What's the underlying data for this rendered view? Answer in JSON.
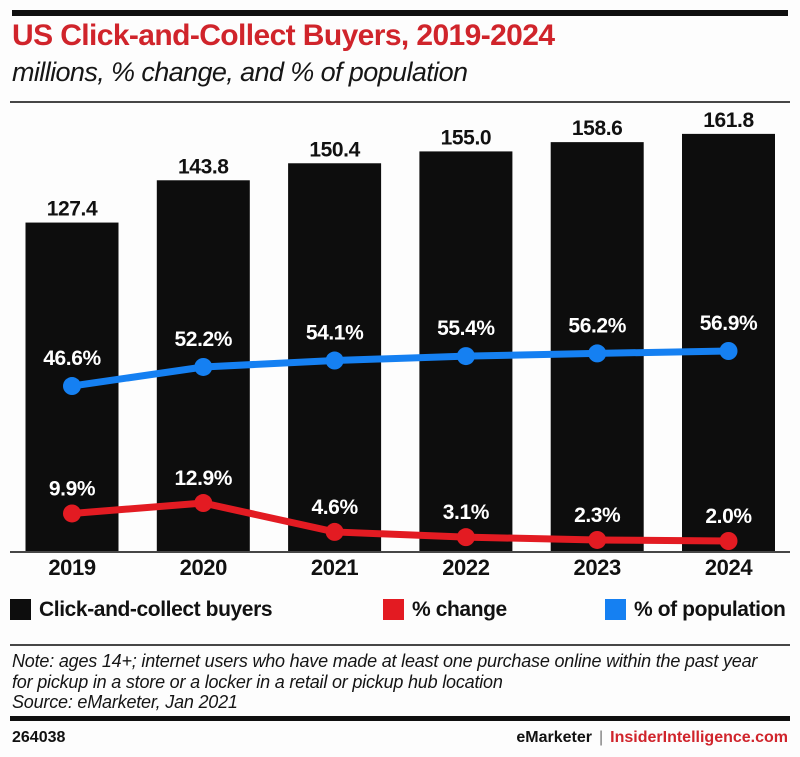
{
  "chart_data": {
    "type": "bar",
    "title": "US Click-and-Collect Buyers, 2019-2024",
    "subtitle": "millions, % change, and % of population",
    "categories": [
      "2019",
      "2020",
      "2021",
      "2022",
      "2023",
      "2024"
    ],
    "series": [
      {
        "name": "Click-and-collect buyers",
        "type": "bar",
        "unit": "millions",
        "values": [
          127.4,
          143.8,
          150.4,
          155.0,
          158.6,
          161.8
        ],
        "labels": [
          "127.4",
          "143.8",
          "150.4",
          "155.0",
          "158.6",
          "161.8"
        ],
        "color": "#0d0d0d"
      },
      {
        "name": "% change",
        "type": "line",
        "values": [
          9.9,
          12.9,
          4.6,
          3.1,
          2.3,
          2.0
        ],
        "labels": [
          "9.9%",
          "12.9%",
          "4.6%",
          "3.1%",
          "2.3%",
          "2.0%"
        ],
        "color": "#e31b22"
      },
      {
        "name": "% of population",
        "type": "line",
        "values": [
          46.6,
          52.2,
          54.1,
          55.4,
          56.2,
          56.9
        ],
        "labels": [
          "46.6%",
          "52.2%",
          "54.1%",
          "55.4%",
          "56.2%",
          "56.9%"
        ],
        "color": "#1580f2"
      }
    ],
    "ylim": [
      0,
      175
    ],
    "grid": false,
    "legend_position": "bottom"
  },
  "colors": {
    "title_red": "#d0242b",
    "data_red": "#e31b22",
    "data_blue": "#1580f2",
    "bar_black": "#0d0d0d"
  },
  "note": {
    "text": "Note: ages 14+; internet users who have made at least one purchase online within the past year for pickup in a store or a locker in a retail or pickup hub location",
    "source": "Source: eMarketer, Jan 2021"
  },
  "footer": {
    "id": "264038",
    "brand": "eMarketer",
    "separator": "|",
    "site": "InsiderIntelligence.com"
  }
}
